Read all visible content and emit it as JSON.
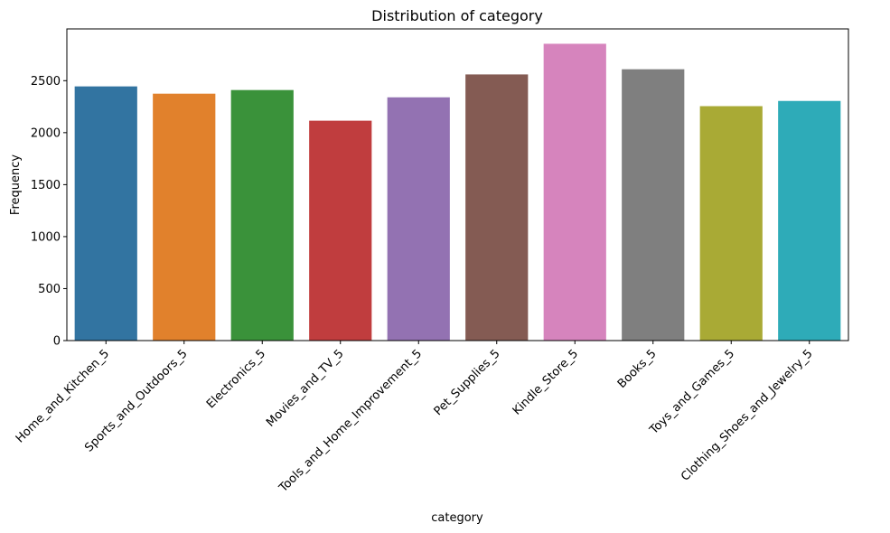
{
  "chart_data": {
    "type": "bar",
    "title": "Distribution of category",
    "xlabel": "category",
    "ylabel": "Frequency",
    "categories": [
      "Home_and_Kitchen_5",
      "Sports_and_Outdoors_5",
      "Electronics_5",
      "Movies_and_TV_5",
      "Tools_and_Home_Improvement_5",
      "Pet_Supplies_5",
      "Kindle_Store_5",
      "Books_5",
      "Toys_and_Games_5",
      "Clothing_Shoes_and_Jewelry_5"
    ],
    "values": [
      2445,
      2375,
      2410,
      2115,
      2340,
      2560,
      2855,
      2610,
      2255,
      2305
    ],
    "colors": [
      "#3274a1",
      "#e1812c",
      "#3a923a",
      "#c03d3e",
      "#9372b2",
      "#845b53",
      "#d684bd",
      "#7f7f7f",
      "#a9aa35",
      "#2eabb8"
    ],
    "ylim": [
      0,
      2998
    ],
    "yticks": [
      0,
      500,
      1000,
      1500,
      2000,
      2500
    ],
    "grid": false,
    "legend": "none"
  }
}
